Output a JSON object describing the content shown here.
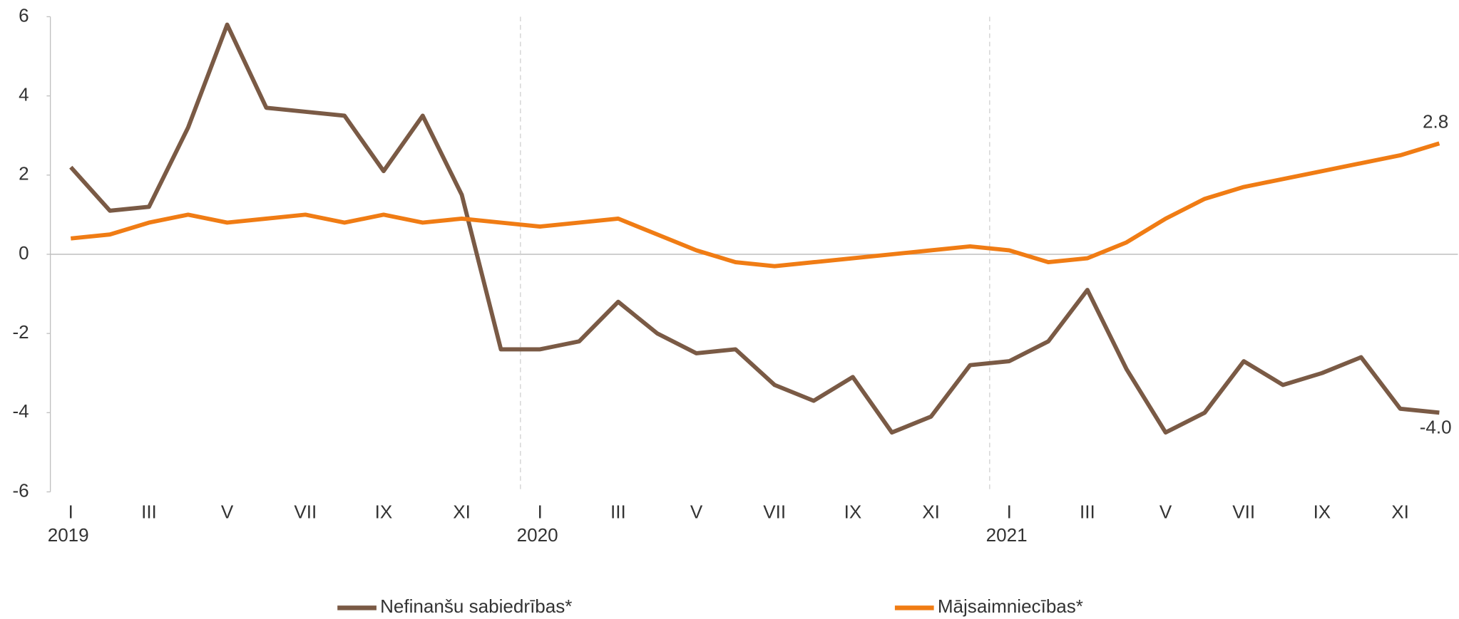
{
  "chart_data": {
    "type": "line",
    "categories": [
      "I",
      null,
      "III",
      null,
      "V",
      null,
      "VII",
      null,
      "IX",
      null,
      "XI",
      null,
      "I",
      null,
      "III",
      null,
      "V",
      null,
      "VII",
      null,
      "IX",
      null,
      "XI",
      null,
      "I",
      null,
      "III",
      null,
      "V",
      null,
      "VII",
      null,
      "IX",
      null,
      "XI",
      null
    ],
    "year_labels": [
      "2019",
      "2020",
      "2021"
    ],
    "ylim": [
      -6,
      6
    ],
    "yticks": [
      -6,
      -4,
      -2,
      0,
      2,
      4,
      6
    ],
    "legend": "bottom",
    "series": [
      {
        "name": "Nefinanšu sabiedrības*",
        "color": "#7a5a45",
        "values": [
          2.2,
          1.1,
          1.2,
          3.2,
          5.8,
          3.7,
          3.6,
          3.5,
          2.1,
          3.5,
          1.5,
          -2.4,
          -2.4,
          -2.2,
          -1.2,
          -2.0,
          -2.5,
          -2.4,
          -3.3,
          -3.7,
          -3.1,
          -4.5,
          -4.1,
          -2.8,
          -2.7,
          -2.2,
          -0.9,
          -2.9,
          -4.5,
          -4.0,
          -2.7,
          -3.3,
          -3.0,
          -2.6,
          -3.9,
          -4.0
        ],
        "value_labels": [
          null,
          null,
          null,
          null,
          null,
          null,
          null,
          null,
          null,
          null,
          null,
          null,
          null,
          null,
          null,
          null,
          null,
          null,
          null,
          null,
          null,
          null,
          null,
          null,
          null,
          null,
          null,
          null,
          null,
          null,
          null,
          null,
          null,
          null,
          null,
          "-4.0"
        ]
      },
      {
        "name": "Mājsaimniecības*",
        "color": "#f07c14",
        "values": [
          0.4,
          0.5,
          0.8,
          1.0,
          0.8,
          0.9,
          1.0,
          0.8,
          1.0,
          0.8,
          0.9,
          0.8,
          0.7,
          0.8,
          0.9,
          0.5,
          0.1,
          -0.2,
          -0.3,
          -0.2,
          -0.1,
          0.0,
          0.1,
          0.2,
          0.1,
          -0.2,
          -0.1,
          0.3,
          0.9,
          1.4,
          1.7,
          1.9,
          2.1,
          2.3,
          2.5,
          2.8
        ],
        "value_labels": [
          null,
          null,
          null,
          null,
          null,
          null,
          null,
          null,
          null,
          null,
          null,
          null,
          null,
          null,
          null,
          null,
          null,
          null,
          null,
          null,
          null,
          null,
          null,
          null,
          null,
          null,
          null,
          null,
          null,
          null,
          null,
          null,
          null,
          null,
          null,
          "2.8"
        ]
      }
    ]
  }
}
